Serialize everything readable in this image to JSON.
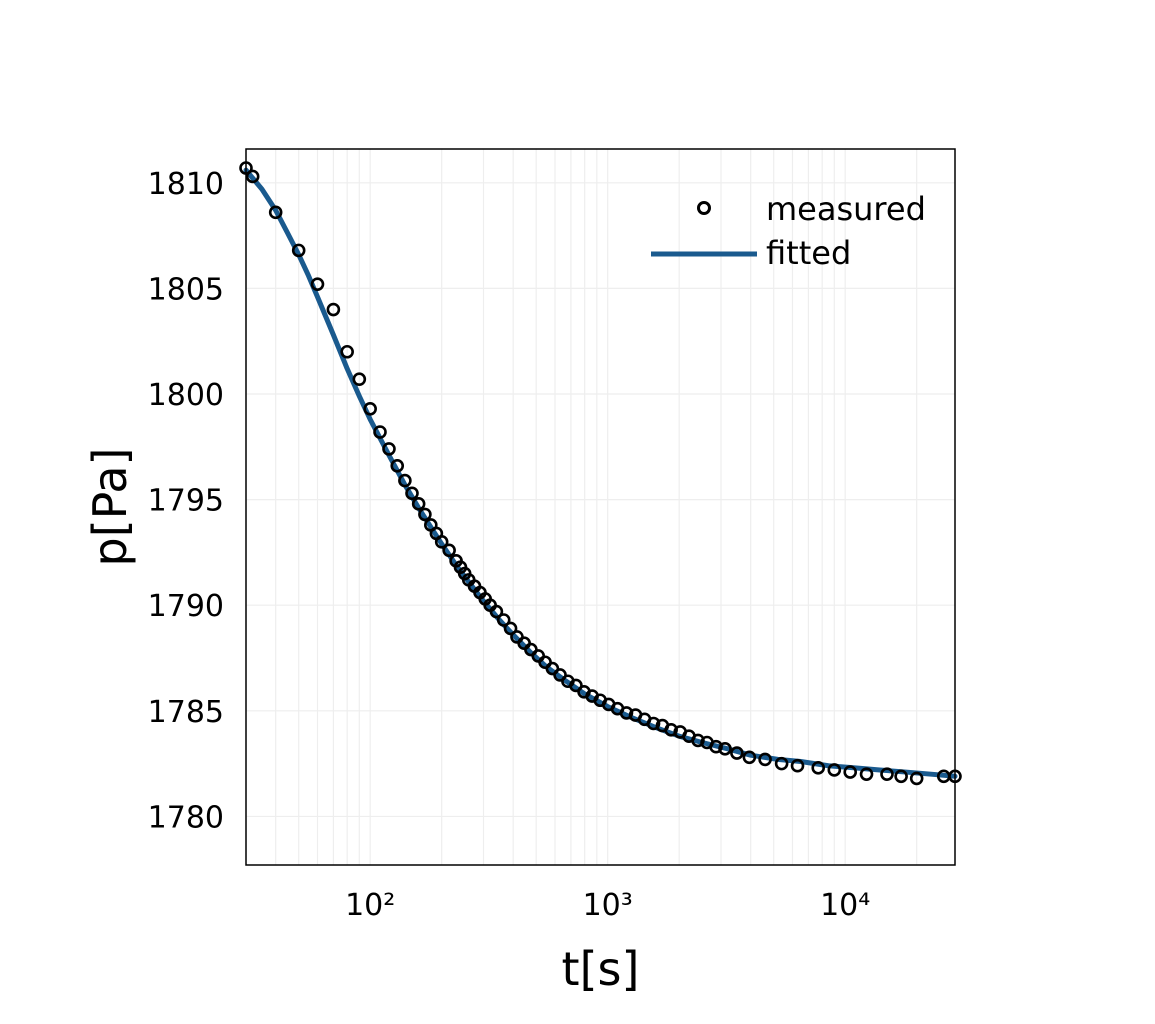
{
  "chart_data": {
    "type": "scatter",
    "xlabel": "t[s]",
    "ylabel": "p[Pa]",
    "xscale": "log",
    "xlim": [
      30,
      29000
    ],
    "ylim": [
      1777.7,
      1811.6
    ],
    "xticks": [
      {
        "value": 100,
        "label": "10²"
      },
      {
        "value": 1000,
        "label": "10³"
      },
      {
        "value": 10000,
        "label": "10⁴"
      }
    ],
    "yticks": [
      1780,
      1785,
      1790,
      1795,
      1800,
      1805,
      1810
    ],
    "grid": true,
    "legend": {
      "position": "top-right"
    },
    "colors": {
      "fitted": "#1a5a8e",
      "measured": "#000000",
      "grid": "#eeeeee"
    },
    "series": [
      {
        "name": "measured",
        "type": "scatter",
        "x": [
          30,
          32,
          40,
          50,
          60,
          70,
          80,
          90,
          100,
          110,
          120,
          130,
          140,
          150,
          160,
          170,
          180,
          190,
          200,
          215,
          230,
          240,
          250,
          260,
          275,
          290,
          305,
          320,
          340,
          365,
          390,
          415,
          445,
          475,
          510,
          545,
          585,
          630,
          680,
          735,
          795,
          860,
          930,
          1010,
          1100,
          1200,
          1310,
          1430,
          1560,
          1700,
          1850,
          2020,
          2200,
          2400,
          2620,
          2860,
          3120,
          3500,
          3950,
          4600,
          5400,
          6300,
          7700,
          9000,
          10500,
          12300,
          15000,
          17200,
          20000,
          26000,
          29000
        ],
        "y": [
          1810.7,
          1810.3,
          1808.6,
          1806.8,
          1805.2,
          1804.0,
          1802.0,
          1800.7,
          1799.3,
          1798.2,
          1797.4,
          1796.6,
          1795.9,
          1795.3,
          1794.8,
          1794.3,
          1793.8,
          1793.4,
          1793.0,
          1792.6,
          1792.1,
          1791.8,
          1791.5,
          1791.2,
          1790.9,
          1790.6,
          1790.3,
          1790.0,
          1789.7,
          1789.3,
          1788.9,
          1788.5,
          1788.2,
          1787.9,
          1787.6,
          1787.3,
          1787.0,
          1786.7,
          1786.4,
          1786.2,
          1785.9,
          1785.7,
          1785.5,
          1785.3,
          1785.1,
          1784.9,
          1784.8,
          1784.6,
          1784.4,
          1784.3,
          1784.1,
          1784.0,
          1783.8,
          1783.6,
          1783.5,
          1783.3,
          1783.2,
          1783.0,
          1782.8,
          1782.7,
          1782.5,
          1782.4,
          1782.3,
          1782.2,
          1782.1,
          1782.0,
          1782.0,
          1781.9,
          1781.8,
          1781.9,
          1781.9
        ]
      },
      {
        "name": "fitted",
        "type": "line",
        "x": [
          30,
          35,
          40,
          45,
          50,
          55,
          60,
          70,
          80,
          90,
          100,
          120,
          140,
          160,
          180,
          200,
          230,
          260,
          300,
          350,
          400,
          470,
          550,
          650,
          800,
          1000,
          1250,
          1600,
          2000,
          2500,
          3200,
          4000,
          5200,
          6500,
          8500,
          11000,
          14000,
          18000,
          23000,
          29000
        ],
        "y": [
          1810.6,
          1809.7,
          1808.7,
          1807.6,
          1806.6,
          1805.6,
          1804.6,
          1802.8,
          1801.2,
          1799.9,
          1798.8,
          1797.1,
          1795.7,
          1794.6,
          1793.7,
          1792.9,
          1791.9,
          1791.1,
          1790.2,
          1789.3,
          1788.6,
          1787.8,
          1787.1,
          1786.5,
          1785.8,
          1785.2,
          1784.7,
          1784.2,
          1783.8,
          1783.5,
          1783.2,
          1782.9,
          1782.7,
          1782.6,
          1782.4,
          1782.3,
          1782.2,
          1782.1,
          1782.0,
          1781.9
        ]
      }
    ]
  }
}
